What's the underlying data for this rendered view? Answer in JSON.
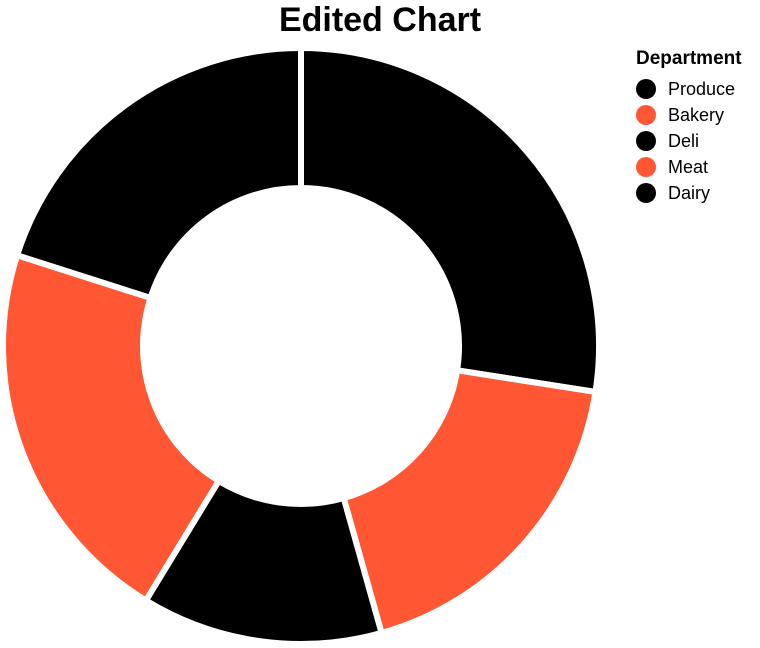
{
  "chart_data": {
    "type": "pie",
    "title": "Edited Chart",
    "legend": {
      "title": "Department",
      "placement": "top-right"
    },
    "categories": [
      "Produce",
      "Bakery",
      "Deli",
      "Meat",
      "Dairy"
    ],
    "values": [
      29.0,
      19.2,
      13.8,
      22.4,
      21.2
    ],
    "colors": [
      "#000000",
      "#ff5733",
      "#000000",
      "#ff5733",
      "#000000"
    ],
    "donut": true
  }
}
